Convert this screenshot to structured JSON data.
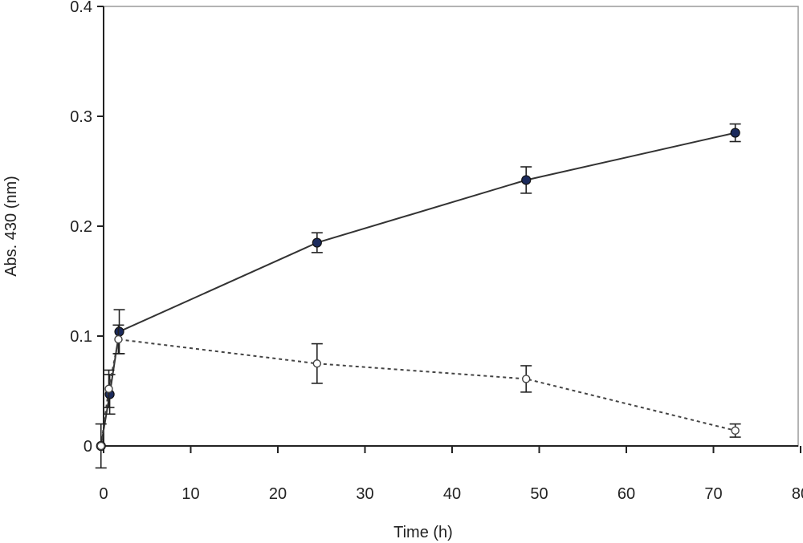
{
  "chart_data": {
    "type": "line",
    "title": "",
    "xlabel": "Time (h)",
    "ylabel": "Abs. 430 (nm)",
    "xlim": [
      -2,
      80
    ],
    "ylim": [
      0,
      0.4
    ],
    "xticks": [
      0,
      10,
      20,
      30,
      40,
      50,
      60,
      70,
      80
    ],
    "xtick_labels": [
      "0",
      "10",
      "20",
      "30",
      "40",
      "50",
      "60",
      "70",
      "80"
    ],
    "yticks": [
      0,
      0.1,
      0.2,
      0.3,
      0.4
    ],
    "ytick_labels": [
      "0",
      "0.1",
      "0.2",
      "0.3",
      "0.4"
    ],
    "grid": false,
    "legend": "none",
    "series": [
      {
        "style": "solid",
        "marker": "filled-circle",
        "color": "#1b2a5c",
        "x": [
          -0.3,
          0.7,
          1.8,
          24.5,
          48.5,
          72.5
        ],
        "y": [
          0.0,
          0.047,
          0.104,
          0.185,
          0.242,
          0.285
        ],
        "err": [
          0.0,
          0.018,
          0.02,
          0.009,
          0.012,
          0.008
        ]
      },
      {
        "style": "dashed",
        "marker": "open-circle",
        "color": "#555555",
        "x": [
          -0.3,
          0.6,
          1.7,
          24.5,
          48.5,
          72.5
        ],
        "y": [
          0.0,
          0.052,
          0.097,
          0.075,
          0.061,
          0.014
        ],
        "err": [
          0.02,
          0.017,
          0.013,
          0.018,
          0.012,
          0.006
        ]
      }
    ]
  }
}
